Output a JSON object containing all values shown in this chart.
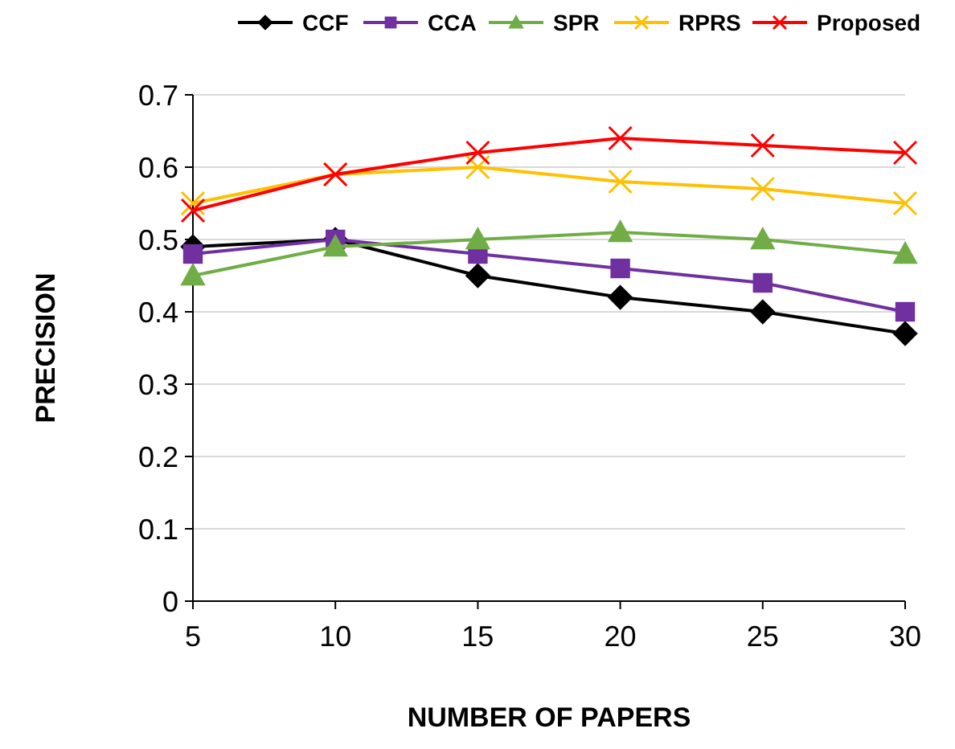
{
  "chart_data": {
    "type": "line",
    "xlabel": "NUMBER  OF PAPERS",
    "ylabel": "PRECISION",
    "x": [
      5,
      10,
      15,
      20,
      25,
      30
    ],
    "xlim": [
      5,
      30
    ],
    "xticks": [
      5,
      10,
      15,
      20,
      25,
      30
    ],
    "ylim": [
      0,
      0.7
    ],
    "yticks": [
      0,
      0.1,
      0.2,
      0.3,
      0.4,
      0.5,
      0.6,
      0.7
    ],
    "grid": "y",
    "legend": "top",
    "series": [
      {
        "name": "CCF",
        "color": "#000000",
        "marker": "diamond",
        "values": [
          0.49,
          0.5,
          0.45,
          0.42,
          0.4,
          0.37
        ]
      },
      {
        "name": "CCA",
        "color": "#7030a0",
        "marker": "square",
        "values": [
          0.48,
          0.5,
          0.48,
          0.46,
          0.44,
          0.4
        ]
      },
      {
        "name": "SPR",
        "color": "#70ad47",
        "marker": "triangle",
        "values": [
          0.45,
          0.49,
          0.5,
          0.51,
          0.5,
          0.48
        ]
      },
      {
        "name": "RPRS",
        "color": "#ffc000",
        "marker": "cross",
        "values": [
          0.55,
          0.59,
          0.6,
          0.58,
          0.57,
          0.55
        ]
      },
      {
        "name": "Proposed",
        "color": "#ff0000",
        "marker": "cross",
        "values": [
          0.54,
          0.59,
          0.62,
          0.64,
          0.63,
          0.62
        ]
      }
    ]
  }
}
